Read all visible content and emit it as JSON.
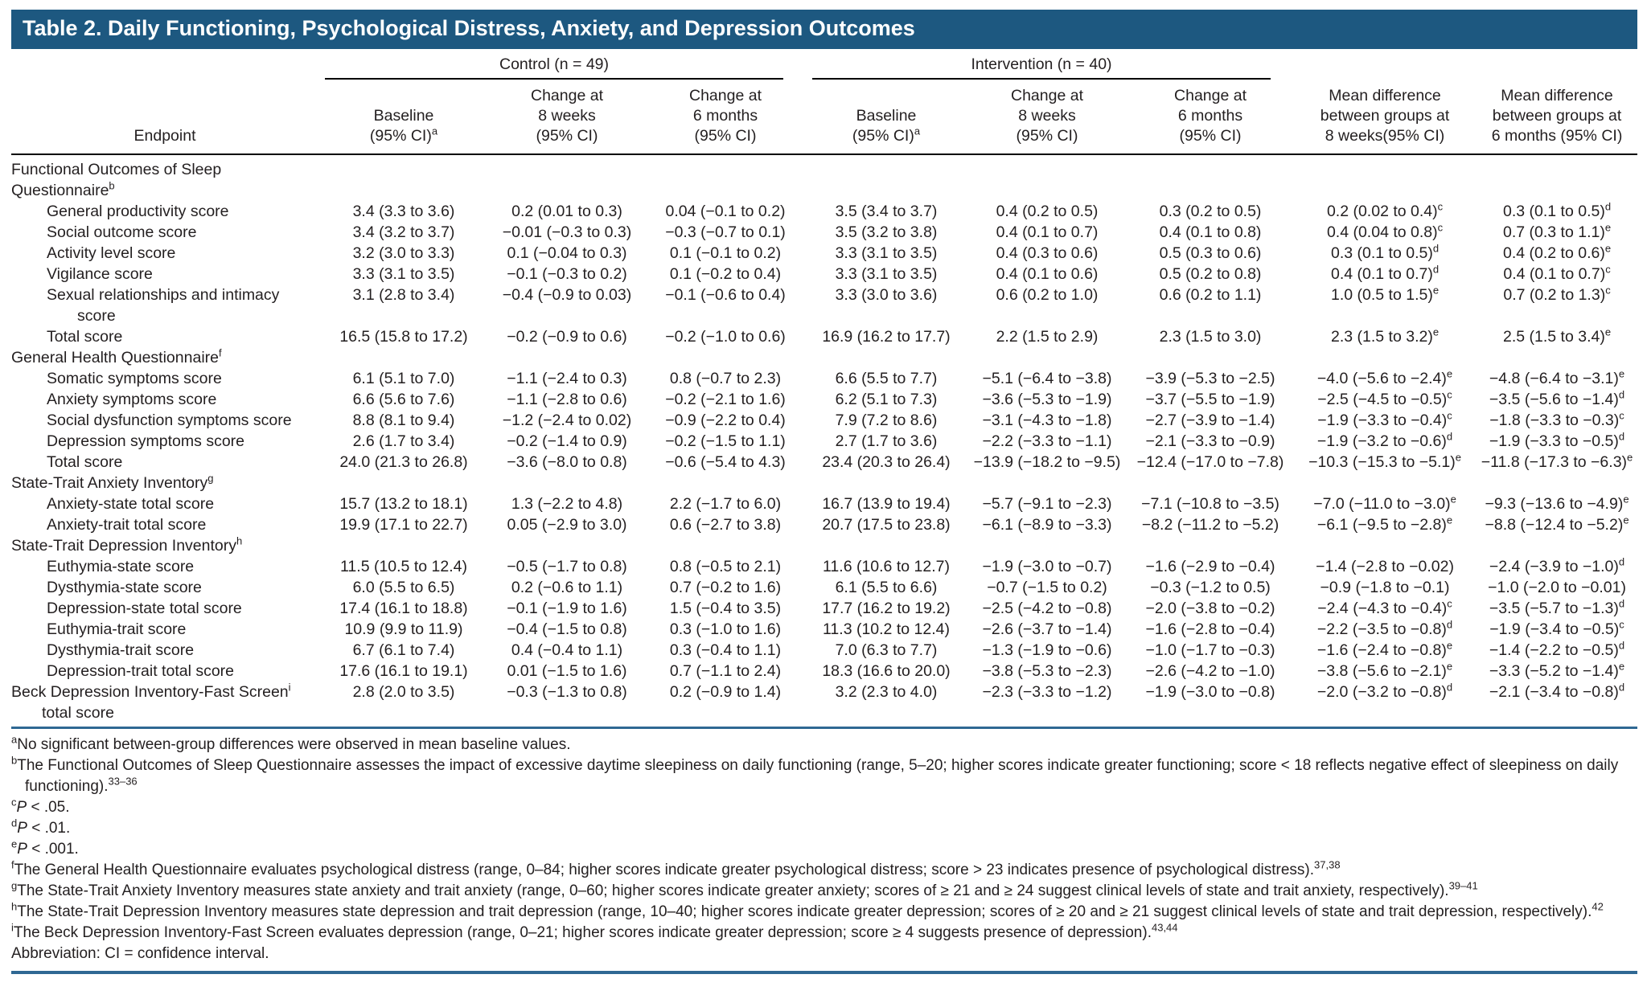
{
  "title": "Table 2. Daily Functioning, Psychological Distress, Anxiety, and Depression Outcomes",
  "groups": [
    "Control (n = 49)",
    "Intervention (n = 40)"
  ],
  "columns": [
    {
      "lines": [
        "Endpoint"
      ]
    },
    {
      "lines": [
        "Baseline",
        "(95% CI)^a"
      ]
    },
    {
      "lines": [
        "Change at",
        "8 weeks",
        "(95% CI)"
      ]
    },
    {
      "lines": [
        "Change at",
        "6 months",
        "(95% CI)"
      ]
    },
    {
      "lines": [
        "Baseline",
        "(95% CI)^a"
      ]
    },
    {
      "lines": [
        "Change at",
        "8 weeks",
        "(95% CI)"
      ]
    },
    {
      "lines": [
        "Change at",
        "6 months",
        "(95% CI)"
      ]
    },
    {
      "lines": [
        "Mean difference",
        "between groups at",
        "8 weeks(95% CI)"
      ]
    },
    {
      "lines": [
        "Mean difference",
        "between groups at",
        "6 months (95% CI)"
      ]
    }
  ],
  "rows": [
    {
      "label": "Functional Outcomes of Sleep Questionnaire^b",
      "indent": 0,
      "hang": false,
      "cells": null
    },
    {
      "label": "General productivity score",
      "indent": 1,
      "hang": true,
      "cells": [
        "3.4 (3.3 to 3.6)",
        "0.2 (0.01 to 0.3)",
        "0.04 (−0.1 to 0.2)",
        "3.5 (3.4 to 3.7)",
        "0.4 (0.2 to 0.5)",
        "0.3 (0.2 to 0.5)",
        "0.2 (0.02 to 0.4)^c",
        "0.3 (0.1 to 0.5)^d"
      ]
    },
    {
      "label": "Social outcome score",
      "indent": 1,
      "hang": true,
      "cells": [
        "3.4 (3.2 to 3.7)",
        "−0.01 (−0.3 to 0.3)",
        "−0.3 (−0.7 to 0.1)",
        "3.5 (3.2 to 3.8)",
        "0.4 (0.1 to 0.7)",
        "0.4 (0.1 to 0.8)",
        "0.4 (0.04 to 0.8)^c",
        "0.7 (0.3 to 1.1)^e"
      ]
    },
    {
      "label": "Activity level score",
      "indent": 1,
      "hang": true,
      "cells": [
        "3.2 (3.0 to 3.3)",
        "0.1 (−0.04 to 0.3)",
        "0.1 (−0.1 to 0.2)",
        "3.3 (3.1 to 3.5)",
        "0.4 (0.3 to 0.6)",
        "0.5 (0.3 to 0.6)",
        "0.3 (0.1 to 0.5)^d",
        "0.4 (0.2 to 0.6)^e"
      ]
    },
    {
      "label": "Vigilance score",
      "indent": 1,
      "hang": true,
      "cells": [
        "3.3 (3.1 to 3.5)",
        "−0.1 (−0.3 to 0.2)",
        "0.1 (−0.2 to 0.4)",
        "3.3 (3.1 to 3.5)",
        "0.4 (0.1 to 0.6)",
        "0.5 (0.2 to 0.8)",
        "0.4 (0.1 to 0.7)^d",
        "0.4 (0.1 to 0.7)^c"
      ]
    },
    {
      "label": "Sexual relationships and intimacy score",
      "indent": 1,
      "hang": true,
      "cells": [
        "3.1 (2.8 to 3.4)",
        "−0.4 (−0.9 to 0.03)",
        "−0.1 (−0.6 to 0.4)",
        "3.3 (3.0 to 3.6)",
        "0.6 (0.2 to 1.0)",
        "0.6 (0.2 to 1.1)",
        "1.0 (0.5 to 1.5)^e",
        "0.7 (0.2 to 1.3)^c"
      ]
    },
    {
      "label": "Total score",
      "indent": 1,
      "hang": true,
      "cells": [
        "16.5 (15.8 to 17.2)",
        "−0.2 (−0.9 to 0.6)",
        "−0.2 (−1.0 to 0.6)",
        "16.9 (16.2 to 17.7)",
        "2.2 (1.5 to 2.9)",
        "2.3 (1.5 to 3.0)",
        "2.3 (1.5 to 3.2)^e",
        "2.5 (1.5 to 3.4)^e"
      ]
    },
    {
      "label": "General Health Questionnaire^f",
      "indent": 0,
      "hang": false,
      "cells": null
    },
    {
      "label": "Somatic symptoms score",
      "indent": 1,
      "hang": true,
      "cells": [
        "6.1 (5.1 to 7.0)",
        "−1.1 (−2.4 to 0.3)",
        "0.8 (−0.7 to 2.3)",
        "6.6 (5.5 to 7.7)",
        "−5.1 (−6.4 to −3.8)",
        "−3.9 (−5.3 to −2.5)",
        "−4.0 (−5.6 to −2.4)^e",
        "−4.8 (−6.4 to −3.1)^e"
      ]
    },
    {
      "label": "Anxiety symptoms score",
      "indent": 1,
      "hang": true,
      "cells": [
        "6.6 (5.6 to 7.6)",
        "−1.1 (−2.8 to 0.6)",
        "−0.2 (−2.1 to 1.6)",
        "6.2 (5.1 to 7.3)",
        "−3.6 (−5.3 to −1.9)",
        "−3.7 (−5.5 to −1.9)",
        "−2.5 (−4.5 to −0.5)^c",
        "−3.5 (−5.6 to −1.4)^d"
      ]
    },
    {
      "label": "Social dysfunction symptoms score",
      "indent": 1,
      "hang": true,
      "cells": [
        "8.8 (8.1 to 9.4)",
        "−1.2 (−2.4 to 0.02)",
        "−0.9 (−2.2 to 0.4)",
        "7.9 (7.2 to 8.6)",
        "−3.1 (−4.3 to −1.8)",
        "−2.7 (−3.9 to −1.4)",
        "−1.9 (−3.3 to −0.4)^c",
        "−1.8 (−3.3 to −0.3)^c"
      ]
    },
    {
      "label": "Depression symptoms score",
      "indent": 1,
      "hang": true,
      "cells": [
        "2.6 (1.7 to 3.4)",
        "−0.2 (−1.4 to 0.9)",
        "−0.2 (−1.5 to 1.1)",
        "2.7 (1.7 to 3.6)",
        "−2.2 (−3.3 to −1.1)",
        "−2.1 (−3.3 to −0.9)",
        "−1.9 (−3.2 to −0.6)^d",
        "−1.9 (−3.3 to −0.5)^d"
      ]
    },
    {
      "label": "Total score",
      "indent": 1,
      "hang": true,
      "cells": [
        "24.0 (21.3 to 26.8)",
        "−3.6 (−8.0 to 0.8)",
        "−0.6 (−5.4 to 4.3)",
        "23.4 (20.3 to 26.4)",
        "−13.9 (−18.2 to −9.5)",
        "−12.4 (−17.0 to −7.8)",
        "−10.3 (−15.3 to −5.1)^e",
        "−11.8 (−17.3 to −6.3)^e"
      ]
    },
    {
      "label": "State-Trait Anxiety Inventory^g",
      "indent": 0,
      "hang": false,
      "cells": null
    },
    {
      "label": "Anxiety-state total score",
      "indent": 1,
      "hang": true,
      "cells": [
        "15.7 (13.2 to 18.1)",
        "1.3 (−2.2 to 4.8)",
        "2.2 (−1.7 to 6.0)",
        "16.7 (13.9 to 19.4)",
        "−5.7 (−9.1 to −2.3)",
        "−7.1 (−10.8 to −3.5)",
        "−7.0 (−11.0 to −3.0)^e",
        "−9.3 (−13.6 to −4.9)^e"
      ]
    },
    {
      "label": "Anxiety-trait total score",
      "indent": 1,
      "hang": true,
      "cells": [
        "19.9 (17.1 to 22.7)",
        "0.05 (−2.9 to 3.0)",
        "0.6 (−2.7 to 3.8)",
        "20.7 (17.5 to 23.8)",
        "−6.1 (−8.9 to −3.3)",
        "−8.2 (−11.2 to −5.2)",
        "−6.1 (−9.5 to −2.8)^e",
        "−8.8 (−12.4 to −5.2)^e"
      ]
    },
    {
      "label": "State-Trait Depression Inventory^h",
      "indent": 0,
      "hang": false,
      "cells": null
    },
    {
      "label": "Euthymia-state score",
      "indent": 1,
      "hang": true,
      "cells": [
        "11.5 (10.5 to 12.4)",
        "−0.5 (−1.7 to 0.8)",
        "0.8 (−0.5 to 2.1)",
        "11.6 (10.6 to 12.7)",
        "−1.9 (−3.0 to −0.7)",
        "−1.6 (−2.9 to −0.4)",
        "−1.4 (−2.8 to −0.02)",
        "−2.4 (−3.9 to −1.0)^d"
      ]
    },
    {
      "label": "Dysthymia-state score",
      "indent": 1,
      "hang": true,
      "cells": [
        "6.0 (5.5 to 6.5)",
        "0.2 (−0.6 to 1.1)",
        "0.7 (−0.2 to 1.6)",
        "6.1 (5.5 to 6.6)",
        "−0.7 (−1.5 to 0.2)",
        "−0.3 (−1.2 to 0.5)",
        "−0.9 (−1.8 to −0.1)",
        "−1.0 (−2.0 to −0.01)"
      ]
    },
    {
      "label": "Depression-state total score",
      "indent": 1,
      "hang": true,
      "cells": [
        "17.4 (16.1 to 18.8)",
        "−0.1 (−1.9 to 1.6)",
        "1.5 (−0.4 to 3.5)",
        "17.7 (16.2 to 19.2)",
        "−2.5 (−4.2 to −0.8)",
        "−2.0 (−3.8 to −0.2)",
        "−2.4 (−4.3 to −0.4)^c",
        "−3.5 (−5.7 to −1.3)^d"
      ]
    },
    {
      "label": "Euthymia-trait score",
      "indent": 1,
      "hang": true,
      "cells": [
        "10.9 (9.9 to 11.9)",
        "−0.4 (−1.5 to 0.8)",
        "0.3 (−1.0 to 1.6)",
        "11.3 (10.2 to 12.4)",
        "−2.6 (−3.7 to −1.4)",
        "−1.6 (−2.8 to −0.4)",
        "−2.2 (−3.5 to −0.8)^d",
        "−1.9 (−3.4 to −0.5)^c"
      ]
    },
    {
      "label": "Dysthymia-trait score",
      "indent": 1,
      "hang": true,
      "cells": [
        "6.7 (6.1 to 7.4)",
        "0.4 (−0.4 to 1.1)",
        "0.3 (−0.4 to 1.1)",
        "7.0 (6.3 to 7.7)",
        "−1.3 (−1.9 to −0.6)",
        "−1.0 (−1.7 to −0.3)",
        "−1.6 (−2.4 to −0.8)^e",
        "−1.4 (−2.2 to −0.5)^d"
      ]
    },
    {
      "label": "Depression-trait total score",
      "indent": 1,
      "hang": true,
      "cells": [
        "17.6 (16.1 to 19.1)",
        "0.01 (−1.5 to 1.6)",
        "0.7 (−1.1 to 2.4)",
        "18.3 (16.6 to 20.0)",
        "−3.8 (−5.3 to −2.3)",
        "−2.6 (−4.2 to −1.0)",
        "−3.8 (−5.6 to −2.1)^e",
        "−3.3 (−5.2 to −1.4)^e"
      ]
    },
    {
      "label": "Beck Depression Inventory-Fast Screen^i total score",
      "indent": 0,
      "hang": true,
      "cells": [
        "2.8 (2.0 to 3.5)",
        "−0.3 (−1.3 to 0.8)",
        "0.2 (−0.9 to 1.4)",
        "3.2 (2.3 to 4.0)",
        "−2.3 (−3.3 to −1.2)",
        "−1.9 (−3.0 to −0.8)",
        "−2.0 (−3.2 to −0.8)^d",
        "−2.1 (−3.4 to −0.8)^d"
      ]
    }
  ],
  "footnotes": [
    {
      "sup": "a",
      "text": "No significant between-group differences were observed in mean baseline values."
    },
    {
      "sup": "b",
      "text": "The Functional Outcomes of Sleep Questionnaire assesses the impact of excessive daytime sleepiness on daily functioning (range, 5–20; higher scores indicate greater functioning; score < 18 reflects negative effect of sleepiness on daily functioning).^33–36"
    },
    {
      "sup": "c",
      "text": "*P* < .05."
    },
    {
      "sup": "d",
      "text": "*P* < .01."
    },
    {
      "sup": "e",
      "text": "*P* < .001."
    },
    {
      "sup": "f",
      "text": "The General Health Questionnaire evaluates psychological distress (range, 0–84; higher scores indicate greater psychological distress; score > 23 indicates presence of psychological distress).^37,38"
    },
    {
      "sup": "g",
      "text": "The State-Trait Anxiety Inventory measures state anxiety and trait anxiety (range, 0–60; higher scores indicate greater anxiety; scores of ≥ 21 and ≥ 24 suggest clinical levels of state and trait anxiety, respectively).^39–41"
    },
    {
      "sup": "h",
      "text": "The State-Trait Depression Inventory measures state depression and trait depression (range, 10–40; higher scores indicate greater depression; scores of ≥ 20 and ≥ 21 suggest clinical levels of state and trait depression, respectively).^42"
    },
    {
      "sup": "i",
      "text": "The Beck Depression Inventory-Fast Screen evaluates depression (range, 0–21; higher scores indicate greater depression; score ≥ 4 suggests presence of depression).^43,44"
    },
    {
      "text": "Abbreviation: CI = confidence interval."
    }
  ]
}
